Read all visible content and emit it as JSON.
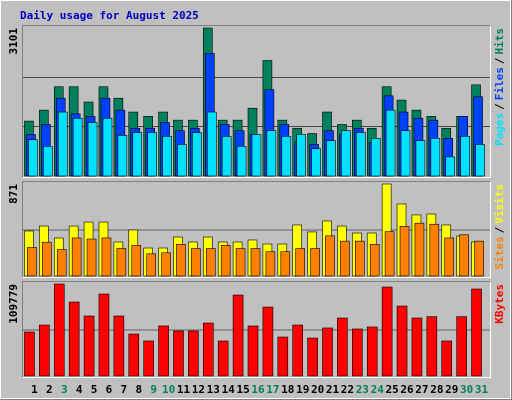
{
  "chart_data": [
    {
      "type": "bar",
      "title": "Daily usage for August 2025",
      "categories": [
        "1",
        "2",
        "3",
        "4",
        "5",
        "6",
        "7",
        "8",
        "9",
        "10",
        "11",
        "12",
        "13",
        "14",
        "15",
        "16",
        "17",
        "18",
        "19",
        "20",
        "21",
        "22",
        "23",
        "24",
        "25",
        "26",
        "27",
        "28",
        "29",
        "30",
        "31"
      ],
      "category_colors": [
        "#000000",
        "#000000",
        "#00805c",
        "#000000",
        "#000000",
        "#000000",
        "#000000",
        "#000000",
        "#00805c",
        "#00805c",
        "#000000",
        "#000000",
        "#000000",
        "#000000",
        "#000000",
        "#00805c",
        "#00805c",
        "#000000",
        "#000000",
        "#000000",
        "#000000",
        "#000000",
        "#00805c",
        "#00805c",
        "#000000",
        "#000000",
        "#000000",
        "#000000",
        "#000000",
        "#00805c",
        "#00805c"
      ],
      "legend_separator": "/",
      "ylim": [
        0,
        3101
      ],
      "yticks": [
        3101
      ],
      "series": [
        {
          "name": "Hits",
          "color": "#00805c",
          "values": [
            1150,
            1380,
            1870,
            1870,
            1550,
            1870,
            1630,
            1340,
            1250,
            1340,
            1170,
            1170,
            3101,
            1170,
            1170,
            1420,
            2420,
            1170,
            1000,
            890,
            1340,
            1080,
            1170,
            1000,
            1870,
            1590,
            1380,
            1250,
            1000,
            1250,
            1910
          ]
        },
        {
          "name": "Files",
          "color": "#0040ff",
          "values": [
            870,
            1080,
            1630,
            1300,
            1250,
            1630,
            1380,
            1000,
            1000,
            1120,
            950,
            1000,
            2570,
            1080,
            950,
            870,
            1810,
            1080,
            700,
            660,
            950,
            870,
            1000,
            700,
            1680,
            1340,
            1210,
            1170,
            790,
            1250,
            1660
          ]
        },
        {
          "name": "Pages",
          "color": "#00e0ff",
          "values": [
            760,
            620,
            1340,
            1210,
            1120,
            1210,
            850,
            910,
            910,
            830,
            660,
            910,
            1340,
            830,
            620,
            870,
            950,
            830,
            870,
            570,
            740,
            950,
            910,
            790,
            1380,
            950,
            740,
            790,
            400,
            830,
            660
          ]
        }
      ]
    },
    {
      "type": "bar",
      "legend_separator": "/",
      "ylim": [
        0,
        871
      ],
      "yticks": [
        871
      ],
      "series": [
        {
          "name": "Visits",
          "color": "#ffff00",
          "values": [
            426,
            473,
            360,
            473,
            511,
            511,
            322,
            436,
            265,
            265,
            369,
            322,
            369,
            322,
            322,
            341,
            303,
            303,
            483,
            417,
            521,
            473,
            407,
            407,
            871,
            682,
            578,
            587,
            483,
            379,
            322
          ]
        },
        {
          "name": "Sites",
          "color": "#ff8000",
          "values": [
            270,
            320,
            250,
            360,
            350,
            360,
            260,
            290,
            210,
            220,
            300,
            260,
            260,
            290,
            260,
            260,
            230,
            230,
            260,
            260,
            380,
            330,
            330,
            300,
            420,
            470,
            500,
            490,
            360,
            390,
            330
          ]
        }
      ]
    },
    {
      "type": "bar",
      "ylim": [
        0,
        109779
      ],
      "yticks": [
        109779
      ],
      "series": [
        {
          "name": "KBytes",
          "color": "#ff0000",
          "values": [
            52500,
            60800,
            109779,
            88300,
            71600,
            97800,
            71600,
            50100,
            41800,
            59700,
            53700,
            53700,
            63200,
            41800,
            96600,
            59700,
            82300,
            46500,
            60800,
            45300,
            57300,
            69200,
            56100,
            58500,
            106200,
            83500,
            69200,
            70800,
            41800,
            70800,
            103800
          ]
        }
      ]
    }
  ]
}
